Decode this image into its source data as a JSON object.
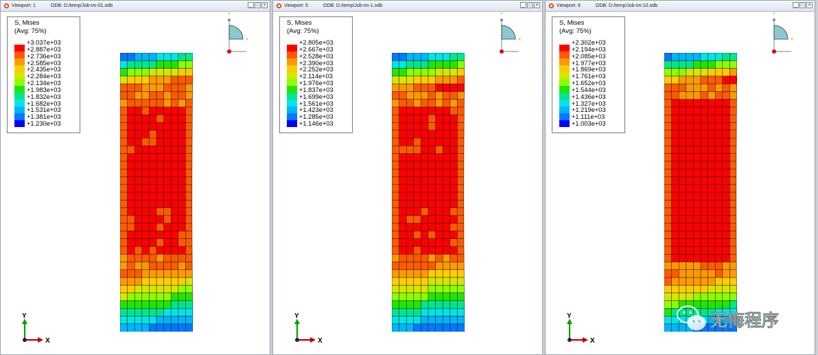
{
  "viewports": [
    {
      "name": "Viewport: 1",
      "odb": "ODB: D:/temp/Job-im-01.odb",
      "legend_title": "S, Mises",
      "legend_subtitle": "(Avg: 75%)",
      "legend_values": [
        "+3.037e+03",
        "+2.887e+03",
        "+2.736e+03",
        "+2.585e+03",
        "+2.435e+03",
        "+2.284e+03",
        "+2.134e+03",
        "+1.983e+03",
        "+1.832e+03",
        "+1.682e+03",
        "+1.531e+03",
        "+1.381e+03",
        "+1.230e+03"
      ]
    },
    {
      "name": "Viewport: 5",
      "odb": "ODB: D:/temp/Job-im-1.odb",
      "legend_title": "S, Mises",
      "legend_subtitle": "(Avg: 75%)",
      "legend_values": [
        "+2.805e+03",
        "+2.667e+03",
        "+2.528e+03",
        "+2.390e+03",
        "+2.252e+03",
        "+2.114e+03",
        "+1.976e+03",
        "+1.837e+03",
        "+1.699e+03",
        "+1.561e+03",
        "+1.423e+03",
        "+1.285e+03",
        "+1.146e+03"
      ]
    },
    {
      "name": "Viewport: 6",
      "odb": "ODB: D:/temp/Job-im-10.odb",
      "legend_title": "S, Mises",
      "legend_subtitle": "(Avg: 75%)",
      "legend_values": [
        "+2.302e+03",
        "+2.194e+03",
        "+2.085e+03",
        "+1.977e+03",
        "+1.869e+03",
        "+1.761e+03",
        "+1.652e+03",
        "+1.544e+03",
        "+1.436e+03",
        "+1.327e+03",
        "+1.219e+03",
        "+1.111e+03",
        "+1.003e+03"
      ]
    }
  ],
  "triad": {
    "x_label": "X",
    "y_label": "Y"
  },
  "watermark": {
    "text": "无悔程序",
    "icon": "wechat-icon"
  },
  "colors": {
    "contour": [
      "#ff0000",
      "#ff5a00",
      "#ff9900",
      "#ffcc00",
      "#d6e600",
      "#8cff00",
      "#22e600",
      "#00e68c",
      "#00e6e6",
      "#00b4ff",
      "#0078ff",
      "#0000ff"
    ],
    "titlebar": "#dfe6ef",
    "background": "#ffffff"
  }
}
